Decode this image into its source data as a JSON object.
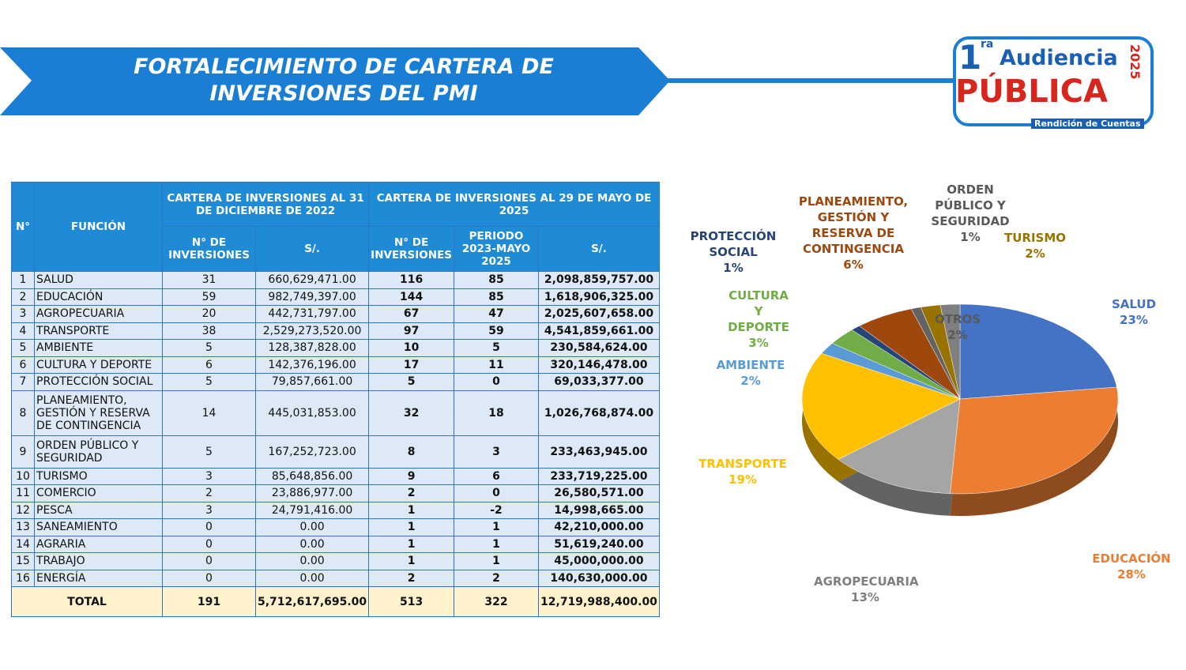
{
  "header": {
    "title": "FORTALECIMIENTO DE CARTERA DE INVERSIONES DEL PMI"
  },
  "logo": {
    "number": "1",
    "ordinal": "ra",
    "line1": "Audiencia",
    "line2": "PÚBLICA",
    "year": "2025",
    "tagline": "Rendición de Cuentas"
  },
  "table": {
    "headers": {
      "num": "N°",
      "function": "FUNCIÓN",
      "group1": "CARTERA DE INVERSIONES AL 31 DE DICIEMBRE DE 2022",
      "group2": "CARTERA DE INVERSIONES AL 29 DE MAYO DE 2025",
      "sub": [
        "N° DE INVERSIONES",
        "S/.",
        "N° DE INVERSIONES",
        "PERIODO 2023-MAYO 2025",
        "S/."
      ]
    },
    "rows": [
      [
        1,
        "SALUD",
        31,
        "660,629,471.00",
        116,
        85,
        "2,098,859,757.00"
      ],
      [
        2,
        "EDUCACIÓN",
        59,
        "982,749,397.00",
        144,
        85,
        "1,618,906,325.00"
      ],
      [
        3,
        "AGROPECUARIA",
        20,
        "442,731,797.00",
        67,
        47,
        "2,025,607,658.00"
      ],
      [
        4,
        "TRANSPORTE",
        38,
        "2,529,273,520.00",
        97,
        59,
        "4,541,859,661.00"
      ],
      [
        5,
        "AMBIENTE",
        5,
        "128,387,828.00",
        10,
        5,
        "230,584,624.00"
      ],
      [
        6,
        "CULTURA Y DEPORTE",
        6,
        "142,376,196.00",
        17,
        11,
        "320,146,478.00"
      ],
      [
        7,
        "PROTECCIÓN SOCIAL",
        5,
        "79,857,661.00",
        5,
        0,
        "69,033,377.00"
      ],
      [
        8,
        "PLANEAMIENTO, GESTIÓN Y RESERVA DE CONTINGENCIA",
        14,
        "445,031,853.00",
        32,
        18,
        "1,026,768,874.00"
      ],
      [
        9,
        "ORDEN PÚBLICO Y SEGURIDAD",
        5,
        "167,252,723.00",
        8,
        3,
        "233,463,945.00"
      ],
      [
        10,
        "TURISMO",
        3,
        "85,648,856.00",
        9,
        6,
        "233,719,225.00"
      ],
      [
        11,
        "COMERCIO",
        2,
        "23,886,977.00",
        2,
        0,
        "26,580,571.00"
      ],
      [
        12,
        "PESCA",
        3,
        "24,791,416.00",
        1,
        -2,
        "14,998,665.00"
      ],
      [
        13,
        "SANEAMIENTO",
        0,
        "0.00",
        1,
        1,
        "42,210,000.00"
      ],
      [
        14,
        "AGRARIA",
        0,
        "0.00",
        1,
        1,
        "51,619,240.00"
      ],
      [
        15,
        "TRABAJO",
        0,
        "0.00",
        1,
        1,
        "45,000,000.00"
      ],
      [
        16,
        "ENERGÍA",
        0,
        "0.00",
        2,
        2,
        "140,630,000.00"
      ]
    ],
    "total": [
      "TOTAL",
      191,
      "5,712,617,695.00",
      513,
      322,
      "12,719,988,400.00"
    ]
  },
  "chart_data": {
    "type": "pie",
    "categories": [
      "SALUD",
      "EDUCACIÓN",
      "AGROPECUARIA",
      "TRANSPORTE",
      "AMBIENTE",
      "CULTURA Y DEPORTE",
      "PROTECCIÓN SOCIAL",
      "PLANEAMIENTO, GESTIÓN Y RESERVA DE CONTINGENCIA",
      "ORDEN PÚBLICO Y SEGURIDAD",
      "TURISMO",
      "OTROS"
    ],
    "values": [
      23,
      28,
      13,
      19,
      2,
      3,
      1,
      6,
      1,
      2,
      2
    ],
    "value_labels": [
      "23%",
      "28%",
      "13%",
      "19%",
      "2%",
      "3%",
      "1%",
      "6%",
      "1%",
      "2%",
      "2%"
    ],
    "colors": [
      "#4472c4",
      "#ed7d31",
      "#a5a5a5",
      "#ffc000",
      "#5b9bd5",
      "#70ad47",
      "#264478",
      "#9e480e",
      "#636363",
      "#997300",
      "#7f7f7f"
    ]
  }
}
